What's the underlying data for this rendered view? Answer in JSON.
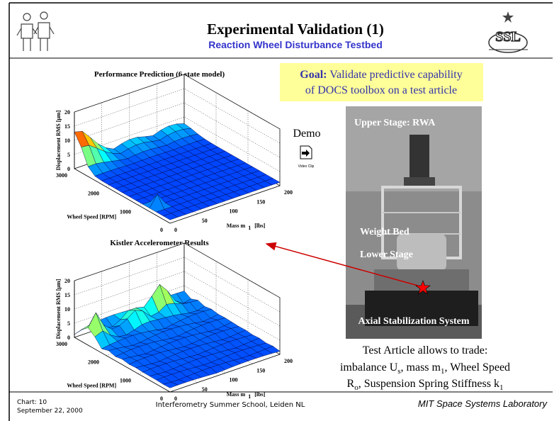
{
  "header": {
    "title": "Experimental Validation (1)",
    "subtitle": "Reaction Wheel Disturbance Testbed"
  },
  "goal": {
    "label": "Goal:",
    "lines": [
      "Validate predictive capability",
      "of DOCS toolbox on a test article"
    ]
  },
  "plots": [
    {
      "title": "Performance Prediction (6 state model)",
      "z_label": "Displacement RMS [μm]",
      "z_ticks": [
        0,
        5,
        10,
        15,
        20
      ],
      "x_label": "Wheel Speed [RPM]",
      "x_ticks": [
        3000,
        2000,
        1000,
        0
      ],
      "y_label": "Mass m",
      "y_label_sub": "1",
      "y_label_unit": "[lbs]",
      "y_ticks": [
        0,
        50,
        100,
        150,
        200
      ]
    },
    {
      "title": "Kistler Accelerometer Results",
      "z_label": "Displacement RMS [μm]",
      "z_ticks": [
        0,
        5,
        10,
        15,
        20
      ],
      "x_label": "Wheel Speed [RPM]",
      "x_ticks": [
        3000,
        2000,
        1000,
        0
      ],
      "y_label": "Mass m",
      "y_label_sub": "1",
      "y_label_unit": "[lbs]",
      "y_ticks": [
        0,
        50,
        100,
        150,
        200
      ]
    }
  ],
  "demo": {
    "label": "Demo",
    "icon_caption": "Video Clip"
  },
  "photo": {
    "labels": [
      "Upper Stage: RWA",
      "Weight Bed",
      "Lower Stage",
      "Axial Stabilization System"
    ]
  },
  "trade": {
    "heading": "Test Article allows to trade:",
    "line1": {
      "a": "imbalance U",
      "a_sub": "s",
      "b": ", mass m",
      "b_sub": "1",
      "c": ", Wheel Speed"
    },
    "line2": {
      "a": "R",
      "a_sub": "o",
      "b": ", Suspension Spring Stiffness k",
      "b_sub": "1"
    }
  },
  "footer": {
    "chart": "Chart: 10",
    "date": "September 22,  2000",
    "center": "Interferometry Summer School, Leiden NL",
    "right": "MIT Space Systems Laboratory"
  }
}
